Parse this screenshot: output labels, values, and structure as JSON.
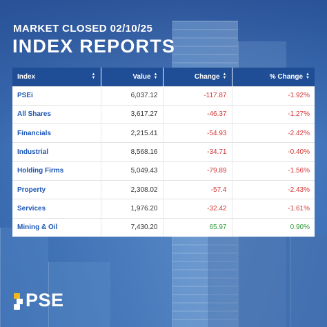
{
  "header": {
    "subtitle": "MARKET CLOSED 02/10/25",
    "title": "INDEX REPORTS"
  },
  "table": {
    "columns": [
      "Index",
      "Value",
      "Change",
      "% Change"
    ],
    "rows": [
      {
        "name": "PSEi",
        "value": "6,037.12",
        "change": "-117.87",
        "pct": "-1.92%"
      },
      {
        "name": "All Shares",
        "value": "3,617.27",
        "change": "-46.37",
        "pct": "-1.27%"
      },
      {
        "name": "Financials",
        "value": "2,215.41",
        "change": "-54.93",
        "pct": "-2.42%"
      },
      {
        "name": "Industrial",
        "value": "8,568.16",
        "change": "-34.71",
        "pct": "-0.40%"
      },
      {
        "name": "Holding Firms",
        "value": "5,049.43",
        "change": "-79.89",
        "pct": "-1.56%"
      },
      {
        "name": "Property",
        "value": "2,308.02",
        "change": "-57.4",
        "pct": "-2.43%"
      },
      {
        "name": "Services",
        "value": "1,976.20",
        "change": "-32.42",
        "pct": "-1.61%"
      },
      {
        "name": "Mining & Oil",
        "value": "7,430.20",
        "change": "65.97",
        "pct": "0.90%"
      }
    ]
  },
  "logo": {
    "text": "PSE"
  },
  "colors": {
    "header_bg": "#1f4e96",
    "name_text": "#1c56b4",
    "negative": "#d43232",
    "positive": "#2e9a36",
    "logo_accent": "#f2b81b"
  },
  "icons": {
    "sort": "sort-updown-icon"
  }
}
